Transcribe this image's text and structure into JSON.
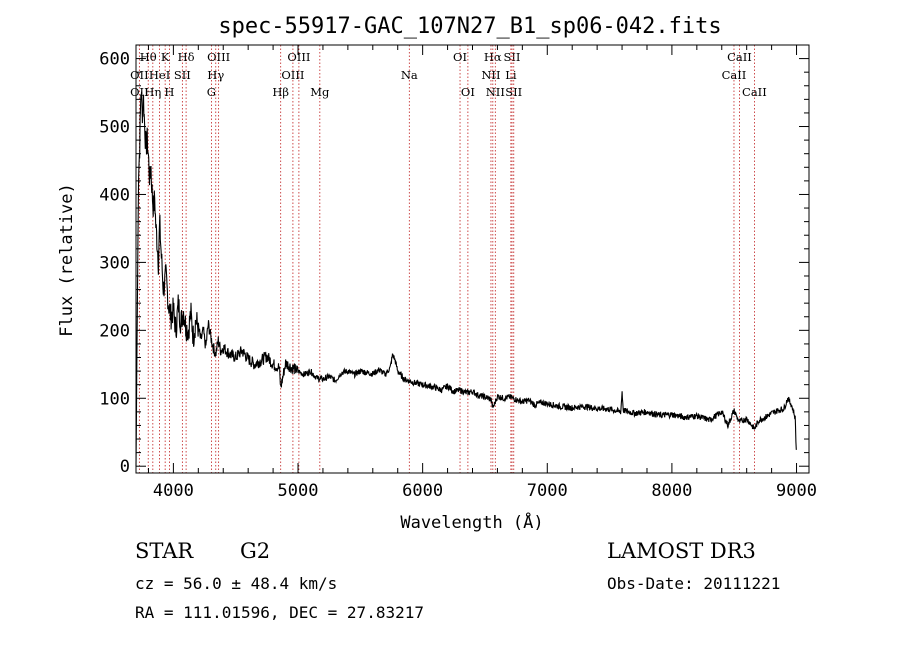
{
  "chart_data": {
    "type": "line",
    "title": "spec-55917-GAC_107N27_B1_sp06-042.fits",
    "xlabel": "Wavelength (Å)",
    "ylabel": "Flux (relative)",
    "xlim": [
      3700,
      9100
    ],
    "ylim": [
      -10,
      620
    ],
    "xticks": [
      4000,
      5000,
      6000,
      7000,
      8000,
      9000
    ],
    "yticks": [
      0,
      100,
      200,
      300,
      400,
      500,
      600
    ],
    "series": [
      {
        "name": "flux",
        "x": [
          3700,
          3720,
          3730,
          3740,
          3750,
          3760,
          3770,
          3780,
          3790,
          3800,
          3810,
          3820,
          3830,
          3840,
          3850,
          3860,
          3870,
          3880,
          3890,
          3900,
          3920,
          3940,
          3960,
          3980,
          4000,
          4020,
          4040,
          4060,
          4080,
          4100,
          4120,
          4140,
          4160,
          4180,
          4200,
          4220,
          4240,
          4260,
          4280,
          4300,
          4320,
          4340,
          4360,
          4380,
          4400,
          4450,
          4500,
          4550,
          4600,
          4650,
          4700,
          4750,
          4800,
          4850,
          4861,
          4900,
          4950,
          5000,
          5050,
          5100,
          5150,
          5200,
          5250,
          5300,
          5350,
          5400,
          5450,
          5500,
          5550,
          5600,
          5650,
          5700,
          5740,
          5760,
          5780,
          5800,
          5850,
          5900,
          5950,
          6000,
          6050,
          6100,
          6150,
          6200,
          6250,
          6300,
          6350,
          6400,
          6450,
          6500,
          6550,
          6563,
          6600,
          6650,
          6700,
          6750,
          6800,
          6850,
          6900,
          6950,
          7000,
          7100,
          7200,
          7300,
          7400,
          7500,
          7590,
          7600,
          7610,
          7700,
          7800,
          7900,
          8000,
          8100,
          8200,
          8300,
          8400,
          8450,
          8498,
          8540,
          8600,
          8662,
          8700,
          8750,
          8800,
          8850,
          8900,
          8930,
          8960,
          8980,
          8990,
          9000
        ],
        "y": [
          0,
          430,
          470,
          560,
          520,
          540,
          500,
          470,
          480,
          455,
          420,
          440,
          400,
          380,
          395,
          350,
          330,
          300,
          360,
          320,
          260,
          280,
          240,
          220,
          230,
          200,
          240,
          210,
          230,
          205,
          200,
          225,
          190,
          215,
          205,
          185,
          200,
          175,
          210,
          190,
          175,
          165,
          185,
          170,
          175,
          165,
          160,
          170,
          158,
          150,
          155,
          162,
          150,
          145,
          115,
          152,
          145,
          140,
          135,
          140,
          130,
          128,
          132,
          126,
          138,
          140,
          135,
          140,
          138,
          136,
          142,
          135,
          145,
          165,
          155,
          140,
          128,
          125,
          122,
          120,
          118,
          116,
          112,
          118,
          110,
          112,
          108,
          110,
          104,
          102,
          98,
          85,
          103,
          100,
          102,
          98,
          95,
          97,
          90,
          94,
          92,
          88,
          86,
          88,
          85,
          84,
          80,
          110,
          82,
          78,
          80,
          75,
          76,
          72,
          74,
          68,
          80,
          60,
          82,
          65,
          70,
          55,
          68,
          72,
          78,
          82,
          85,
          100,
          90,
          78,
          70,
          10
        ],
        "color": "#000000"
      }
    ],
    "spectral_lines": [
      {
        "name": "Hθ",
        "wavelength": 3798,
        "row": 1
      },
      {
        "name": "K",
        "wavelength": 3934,
        "row": 1
      },
      {
        "name": "Hδ",
        "wavelength": 4102,
        "row": 1
      },
      {
        "name": "OIII",
        "wavelength": 4363,
        "row": 1
      },
      {
        "name": "OIII",
        "wavelength": 5007,
        "row": 1
      },
      {
        "name": "OI",
        "wavelength": 6300,
        "row": 1
      },
      {
        "name": "Hα",
        "wavelength": 6563,
        "row": 1
      },
      {
        "name": "SII",
        "wavelength": 6717,
        "row": 1
      },
      {
        "name": "CaII",
        "wavelength": 8542,
        "row": 1
      },
      {
        "name": "OII",
        "wavelength": 3727,
        "row": 2
      },
      {
        "name": "HeI",
        "wavelength": 3889,
        "row": 2
      },
      {
        "name": "SII",
        "wavelength": 4072,
        "row": 2
      },
      {
        "name": "Hγ",
        "wavelength": 4340,
        "row": 2
      },
      {
        "name": "OIII",
        "wavelength": 4959,
        "row": 2
      },
      {
        "name": "Na",
        "wavelength": 5893,
        "row": 2
      },
      {
        "name": "NII",
        "wavelength": 6548,
        "row": 2
      },
      {
        "name": "Li",
        "wavelength": 6708,
        "row": 2
      },
      {
        "name": "CaII",
        "wavelength": 8498,
        "row": 2
      },
      {
        "name": "OII",
        "wavelength": 3727,
        "row": 3
      },
      {
        "name": "Hη",
        "wavelength": 3835,
        "row": 3
      },
      {
        "name": "H",
        "wavelength": 3968,
        "row": 3
      },
      {
        "name": "G",
        "wavelength": 4305,
        "row": 3
      },
      {
        "name": "Hβ",
        "wavelength": 4861,
        "row": 3
      },
      {
        "name": "Mg",
        "wavelength": 5175,
        "row": 3
      },
      {
        "name": "OI",
        "wavelength": 6363,
        "row": 3
      },
      {
        "name": "NII",
        "wavelength": 6583,
        "row": 3
      },
      {
        "name": "SII",
        "wavelength": 6731,
        "row": 3
      },
      {
        "name": "CaII",
        "wavelength": 8662,
        "row": 3
      }
    ],
    "line_marker_color": "#c02020"
  },
  "info": {
    "object_class": "STAR",
    "subclass": "G2",
    "survey": "LAMOST DR3",
    "redshift": "cz = 56.0 ± 48.4 km/s",
    "obs_date": "Obs-Date: 20111221",
    "coords": "RA = 111.01596, DEC =  27.83217"
  }
}
